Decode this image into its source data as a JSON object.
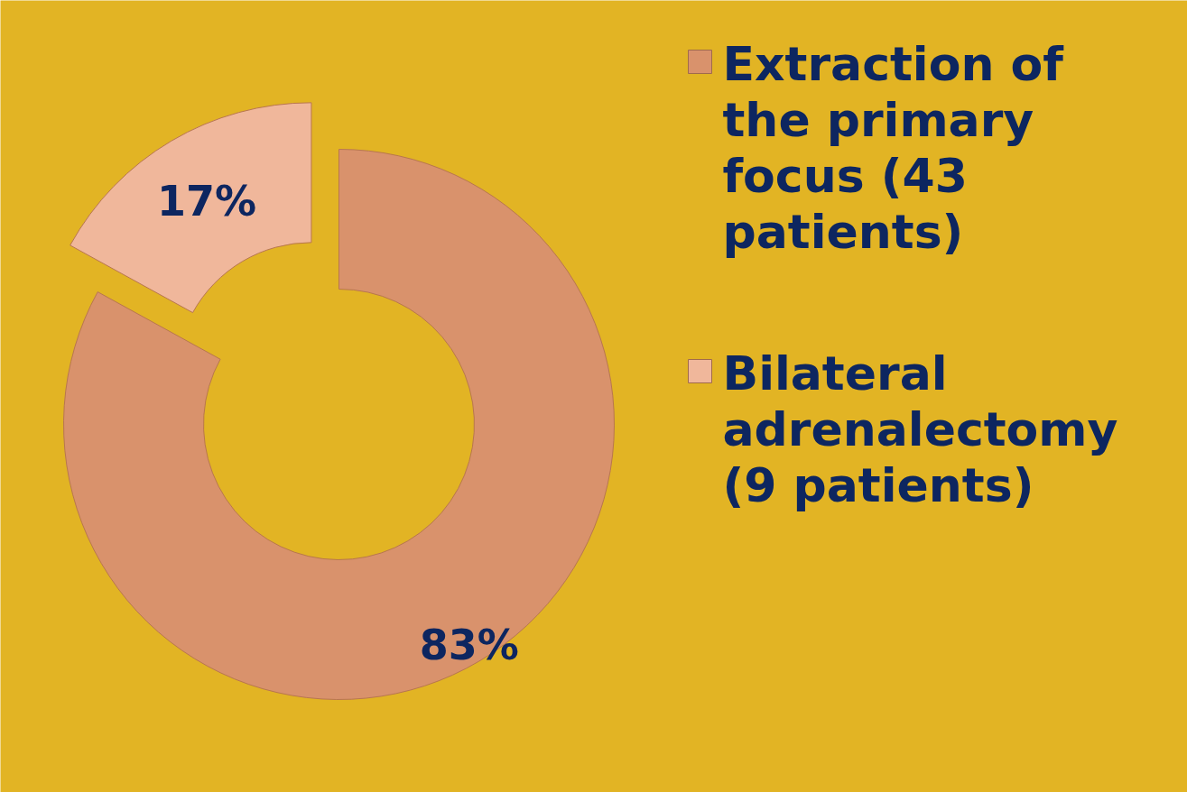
{
  "chart_data": {
    "type": "donut",
    "categories": [
      "Extraction of the primary focus (43 patients)",
      "Bilateral adrenalectomy (9 patients)"
    ],
    "values": [
      83,
      17
    ],
    "colors": [
      "#d9926c",
      "#f0b79b"
    ],
    "value_labels": [
      "83%",
      "17%"
    ],
    "legend": "right"
  }
}
